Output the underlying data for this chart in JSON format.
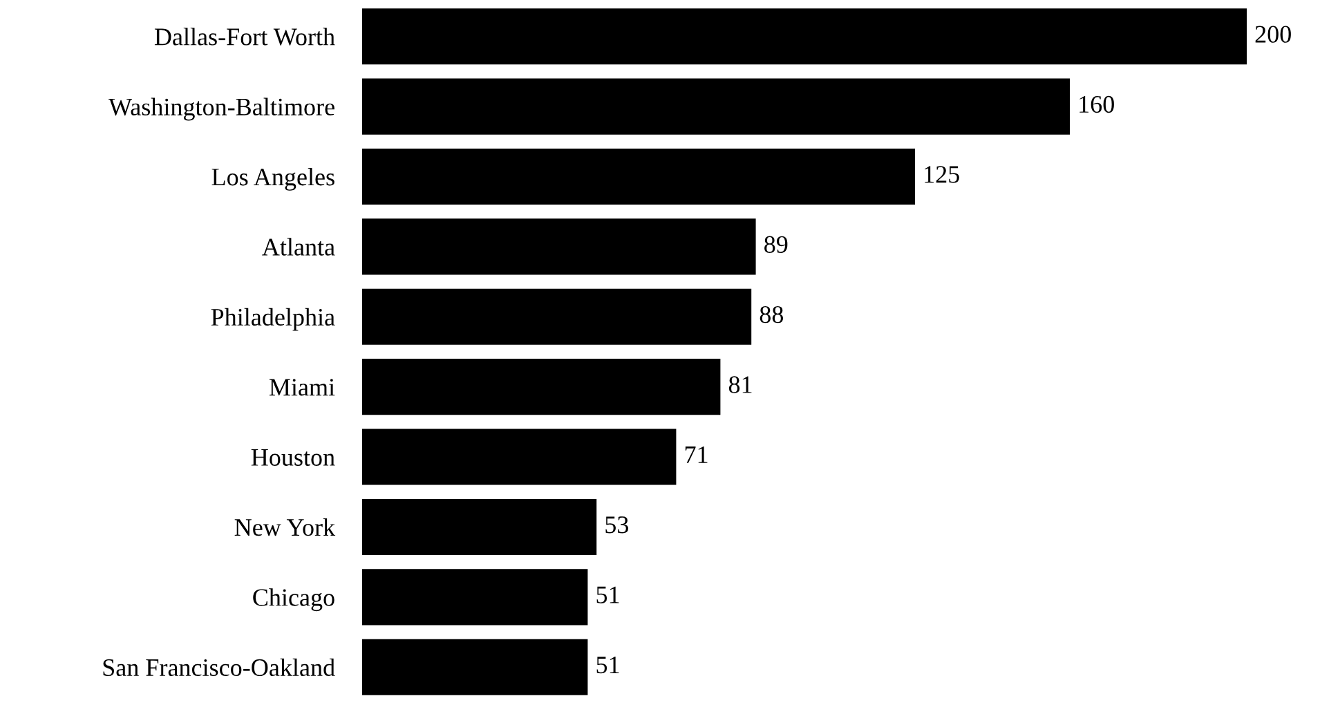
{
  "chart_data": {
    "type": "bar",
    "orientation": "horizontal",
    "categories": [
      "Dallas-Fort Worth",
      "Washington-Baltimore",
      "Los Angeles",
      "Atlanta",
      "Philadelphia",
      "Miami",
      "Houston",
      "New York",
      "Chicago",
      "San Francisco-Oakland"
    ],
    "values": [
      200,
      160,
      125,
      89,
      88,
      81,
      71,
      53,
      51,
      51
    ],
    "color": "#000000",
    "data_labels": true,
    "tick_labels": "y",
    "grid": false,
    "legend": false
  }
}
